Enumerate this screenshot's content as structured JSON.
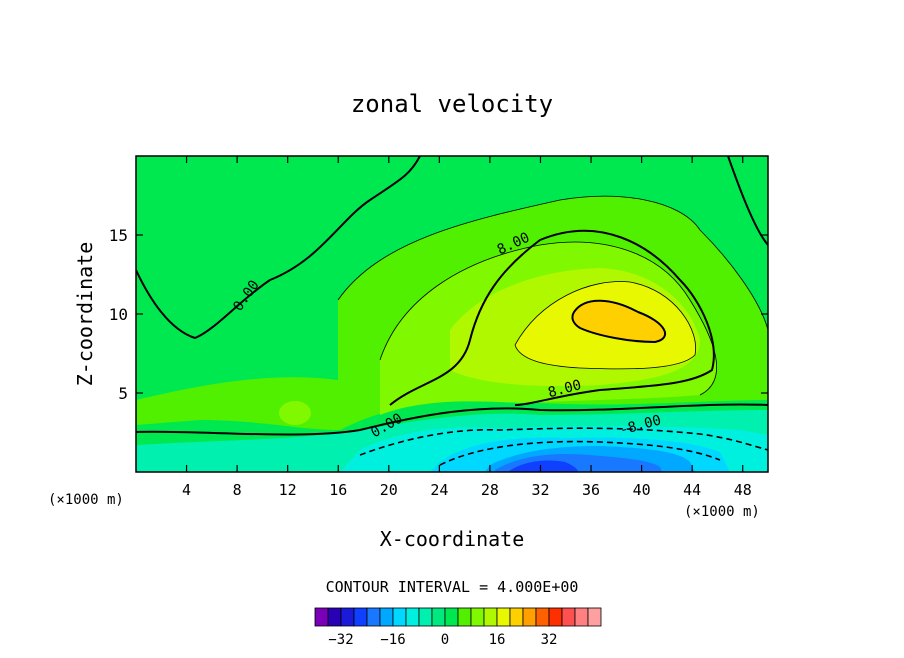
{
  "chart_data": {
    "type": "contour",
    "title": "zonal velocity",
    "xlabel": "X-coordinate",
    "ylabel": "Z-coordinate",
    "x_unit": "(×1000 m)",
    "y_unit": "(×1000 m)",
    "x_ticks": [
      4,
      8,
      12,
      16,
      20,
      24,
      28,
      32,
      36,
      40,
      44,
      48
    ],
    "y_ticks": [
      5,
      10,
      15
    ],
    "xlim": [
      0,
      50
    ],
    "ylim": [
      0,
      20
    ],
    "contour_interval_text": "CONTOUR INTERVAL = 4.000E+00",
    "contour_labels": [
      {
        "text": "0.00",
        "x": 9,
        "z": 11.0
      },
      {
        "text": "8.00",
        "x": 30,
        "z": 14.2
      },
      {
        "text": "8.00",
        "x": 34,
        "z": 5.0
      },
      {
        "text": "0.00",
        "x": 20,
        "z": 2.7
      },
      {
        "text": "-8.00",
        "x": 40,
        "z": 2.7
      }
    ],
    "colorbar": {
      "ticks": [
        "-32",
        "-16",
        "0",
        "16",
        "32"
      ],
      "levels": [
        -40,
        -36,
        -32,
        -28,
        -24,
        -20,
        -16,
        -12,
        -8,
        -4,
        0,
        4,
        8,
        12,
        16,
        20,
        24,
        28,
        32,
        36
      ],
      "colors": [
        "#7a00b8",
        "#2a00b4",
        "#1a1ad8",
        "#1040ff",
        "#1878ff",
        "#00a8ff",
        "#00d8ff",
        "#00f0e0",
        "#00f0b0",
        "#00e880",
        "#00e850",
        "#50f000",
        "#80f800",
        "#b0f800",
        "#e8f800",
        "#ffd000",
        "#ffa000",
        "#ff6000",
        "#ff3000",
        "#ff5050",
        "#ff8080",
        "#ffa0a0"
      ]
    },
    "notable_values": {
      "max_core": {
        "x_range": [
          34,
          41
        ],
        "z_range": [
          8.5,
          11
        ],
        "value_range": [
          20,
          24
        ]
      },
      "min_core": {
        "x_range": [
          28,
          34
        ],
        "z_range": [
          0,
          1.5
        ],
        "value_range": [
          -24,
          -20
        ]
      }
    }
  }
}
